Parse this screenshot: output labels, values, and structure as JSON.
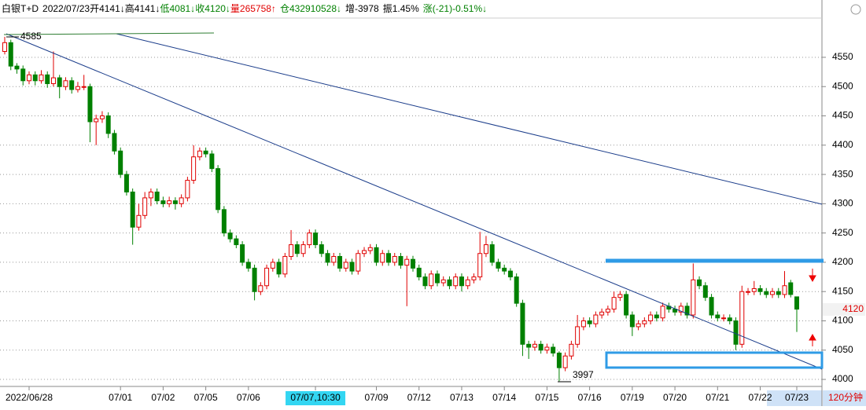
{
  "chart_data": {
    "type": "candlestick",
    "header": [
      {
        "text": "白银T+D",
        "color": "#000000"
      },
      {
        "text": "2022/07/23",
        "color": "#000000"
      },
      {
        "text": "开4141↓",
        "color": "#000000"
      },
      {
        "text": "高4141↓",
        "color": "#000000"
      },
      {
        "text": "低4081↓",
        "color": "#008000"
      },
      {
        "text": "收4120↓",
        "color": "#008000"
      },
      {
        "text": "量265758↑",
        "color": "#e00000"
      },
      {
        "text": "仓432910528↓",
        "color": "#008000"
      },
      {
        "text": "增-3978",
        "color": "#000000"
      },
      {
        "text": "振1.45%",
        "color": "#000000"
      },
      {
        "text": "涨(-21)-0.51%↓",
        "color": "#008000"
      }
    ],
    "period": "120分钟",
    "up_color": "#e00000",
    "down_color": "#008000",
    "cursor": 51,
    "categories": [
      null,
      null,
      null,
      null,
      "2022/06/28",
      null,
      null,
      null,
      null,
      null,
      null,
      null,
      null,
      null,
      null,
      null,
      null,
      null,
      null,
      "07/01",
      null,
      null,
      null,
      null,
      null,
      null,
      "07/02",
      null,
      null,
      null,
      null,
      null,
      null,
      "07/05",
      null,
      null,
      null,
      null,
      null,
      null,
      "07/06",
      null,
      null,
      null,
      null,
      null,
      null,
      null,
      null,
      null,
      null,
      "07/07,10:30",
      null,
      null,
      null,
      null,
      null,
      null,
      null,
      null,
      null,
      "07/09",
      null,
      null,
      null,
      null,
      null,
      null,
      "07/12",
      null,
      null,
      null,
      null,
      null,
      null,
      "07/13",
      null,
      null,
      null,
      null,
      null,
      null,
      "07/14",
      null,
      null,
      null,
      null,
      null,
      null,
      "07/15",
      null,
      null,
      null,
      null,
      null,
      null,
      "07/16",
      null,
      null,
      null,
      null,
      null,
      null,
      "07/19",
      null,
      null,
      null,
      null,
      null,
      null,
      "07/20",
      null,
      null,
      null,
      null,
      null,
      null,
      "07/21",
      null,
      null,
      null,
      null,
      null,
      null,
      "07/22",
      null,
      null,
      null,
      null,
      null,
      "07/23"
    ],
    "candles": [
      [
        4560,
        4585,
        4555,
        4575
      ],
      [
        4575,
        4580,
        4528,
        4535
      ],
      [
        4535,
        4540,
        4522,
        4530
      ],
      [
        4530,
        4536,
        4502,
        4510
      ],
      [
        4510,
        4526,
        4504,
        4520
      ],
      [
        4520,
        4526,
        4502,
        4510
      ],
      [
        4510,
        4528,
        4505,
        4520
      ],
      [
        4520,
        4526,
        4498,
        4505
      ],
      [
        4505,
        4560,
        4500,
        4515
      ],
      [
        4515,
        4520,
        4480,
        4500
      ],
      [
        4500,
        4516,
        4494,
        4510
      ],
      [
        4510,
        4516,
        4488,
        4495
      ],
      [
        4495,
        4508,
        4490,
        4500
      ],
      [
        4500,
        4520,
        4494,
        4500
      ],
      [
        4500,
        4505,
        4405,
        4440
      ],
      [
        4440,
        4452,
        4400,
        4445
      ],
      [
        4445,
        4458,
        4438,
        4450
      ],
      [
        4450,
        4456,
        4412,
        4420
      ],
      [
        4420,
        4426,
        4384,
        4390
      ],
      [
        4390,
        4396,
        4344,
        4350
      ],
      [
        4350,
        4356,
        4314,
        4320
      ],
      [
        4320,
        4326,
        4230,
        4260
      ],
      [
        4260,
        4300,
        4254,
        4280
      ],
      [
        4280,
        4320,
        4274,
        4310
      ],
      [
        4310,
        4326,
        4296,
        4320
      ],
      [
        4320,
        4326,
        4299,
        4305
      ],
      [
        4305,
        4312,
        4294,
        4300
      ],
      [
        4300,
        4312,
        4294,
        4305
      ],
      [
        4305,
        4311,
        4290,
        4300
      ],
      [
        4300,
        4316,
        4294,
        4310
      ],
      [
        4310,
        4346,
        4304,
        4340
      ],
      [
        4340,
        4400,
        4334,
        4380
      ],
      [
        4380,
        4396,
        4374,
        4390
      ],
      [
        4390,
        4396,
        4379,
        4385
      ],
      [
        4385,
        4391,
        4354,
        4360
      ],
      [
        4360,
        4366,
        4284,
        4290
      ],
      [
        4290,
        4296,
        4244,
        4250
      ],
      [
        4250,
        4256,
        4234,
        4240
      ],
      [
        4240,
        4246,
        4224,
        4230
      ],
      [
        4230,
        4236,
        4194,
        4200
      ],
      [
        4200,
        4206,
        4184,
        4190
      ],
      [
        4190,
        4196,
        4135,
        4150
      ],
      [
        4150,
        4166,
        4144,
        4160
      ],
      [
        4160,
        4196,
        4154,
        4190
      ],
      [
        4190,
        4206,
        4184,
        4200
      ],
      [
        4200,
        4206,
        4174,
        4180
      ],
      [
        4180,
        4216,
        4174,
        4210
      ],
      [
        4210,
        4255,
        4204,
        4230
      ],
      [
        4230,
        4236,
        4209,
        4215
      ],
      [
        4215,
        4236,
        4209,
        4230
      ],
      [
        4230,
        4256,
        4224,
        4250
      ],
      [
        4250,
        4256,
        4224,
        4230
      ],
      [
        4230,
        4236,
        4209,
        4215
      ],
      [
        4215,
        4221,
        4194,
        4200
      ],
      [
        4200,
        4216,
        4194,
        4210
      ],
      [
        4210,
        4216,
        4184,
        4190
      ],
      [
        4190,
        4206,
        4184,
        4200
      ],
      [
        4200,
        4206,
        4179,
        4185
      ],
      [
        4185,
        4221,
        4179,
        4215
      ],
      [
        4215,
        4226,
        4209,
        4220
      ],
      [
        4220,
        4231,
        4214,
        4225
      ],
      [
        4225,
        4231,
        4194,
        4200
      ],
      [
        4200,
        4221,
        4194,
        4215
      ],
      [
        4215,
        4221,
        4194,
        4200
      ],
      [
        4200,
        4216,
        4194,
        4210
      ],
      [
        4210,
        4216,
        4189,
        4195
      ],
      [
        4195,
        4211,
        4125,
        4205
      ],
      [
        4205,
        4211,
        4184,
        4190
      ],
      [
        4190,
        4196,
        4169,
        4175
      ],
      [
        4175,
        4181,
        4154,
        4160
      ],
      [
        4160,
        4186,
        4154,
        4180
      ],
      [
        4180,
        4186,
        4159,
        4165
      ],
      [
        4165,
        4176,
        4159,
        4170
      ],
      [
        4170,
        4176,
        4154,
        4160
      ],
      [
        4160,
        4181,
        4154,
        4175
      ],
      [
        4175,
        4181,
        4150,
        4160
      ],
      [
        4160,
        4176,
        4154,
        4170
      ],
      [
        4170,
        4181,
        4164,
        4175
      ],
      [
        4175,
        4252,
        4169,
        4215
      ],
      [
        4215,
        4245,
        4209,
        4230
      ],
      [
        4230,
        4236,
        4194,
        4200
      ],
      [
        4200,
        4206,
        4184,
        4190
      ],
      [
        4190,
        4196,
        4179,
        4185
      ],
      [
        4185,
        4190,
        4169,
        4175
      ],
      [
        4175,
        4181,
        4124,
        4130
      ],
      [
        4130,
        4136,
        4040,
        4060
      ],
      [
        4060,
        4066,
        4035,
        4055
      ],
      [
        4055,
        4066,
        4049,
        4060
      ],
      [
        4060,
        4066,
        4044,
        4050
      ],
      [
        4050,
        4061,
        4044,
        4055
      ],
      [
        4055,
        4061,
        4039,
        4045
      ],
      [
        4045,
        4048,
        3997,
        4020
      ],
      [
        4020,
        4046,
        4014,
        4040
      ],
      [
        4040,
        4066,
        4034,
        4060
      ],
      [
        4060,
        4110,
        4054,
        4090
      ],
      [
        4090,
        4106,
        4084,
        4100
      ],
      [
        4100,
        4106,
        4089,
        4095
      ],
      [
        4095,
        4116,
        4089,
        4110
      ],
      [
        4110,
        4121,
        4104,
        4115
      ],
      [
        4115,
        4126,
        4109,
        4120
      ],
      [
        4120,
        4150,
        4114,
        4140
      ],
      [
        4140,
        4151,
        4134,
        4145
      ],
      [
        4145,
        4151,
        4104,
        4110
      ],
      [
        4110,
        4116,
        4074,
        4090
      ],
      [
        4090,
        4101,
        4084,
        4095
      ],
      [
        4095,
        4106,
        4089,
        4100
      ],
      [
        4100,
        4116,
        4094,
        4110
      ],
      [
        4110,
        4116,
        4099,
        4105
      ],
      [
        4105,
        4131,
        4099,
        4125
      ],
      [
        4125,
        4131,
        4114,
        4120
      ],
      [
        4120,
        4126,
        4109,
        4115
      ],
      [
        4115,
        4131,
        4109,
        4125
      ],
      [
        4125,
        4131,
        4104,
        4110
      ],
      [
        4110,
        4198,
        4104,
        4170
      ],
      [
        4170,
        4176,
        4154,
        4160
      ],
      [
        4160,
        4166,
        4134,
        4140
      ],
      [
        4140,
        4146,
        4104,
        4110
      ],
      [
        4110,
        4116,
        4099,
        4105
      ],
      [
        4105,
        4111,
        4099,
        4105
      ],
      [
        4105,
        4111,
        4094,
        4100
      ],
      [
        4100,
        4106,
        4050,
        4060
      ],
      [
        4060,
        4160,
        4054,
        4150
      ],
      [
        4150,
        4156,
        4144,
        4150
      ],
      [
        4150,
        4168,
        4144,
        4155
      ],
      [
        4155,
        4161,
        4144,
        4150
      ],
      [
        4150,
        4156,
        4139,
        4145
      ],
      [
        4145,
        4156,
        4139,
        4150
      ],
      [
        4150,
        4156,
        4139,
        4145
      ],
      [
        4145,
        4185,
        4139,
        4160
      ],
      [
        4165,
        4170,
        4140,
        4145
      ],
      [
        4141,
        4141,
        4081,
        4120
      ]
    ],
    "ylim": [
      3988,
      4617
    ],
    "yticks": [
      4000,
      4050,
      4100,
      4150,
      4200,
      4250,
      4300,
      4350,
      4400,
      4450,
      4500,
      4550
    ],
    "grid": true
  }
}
